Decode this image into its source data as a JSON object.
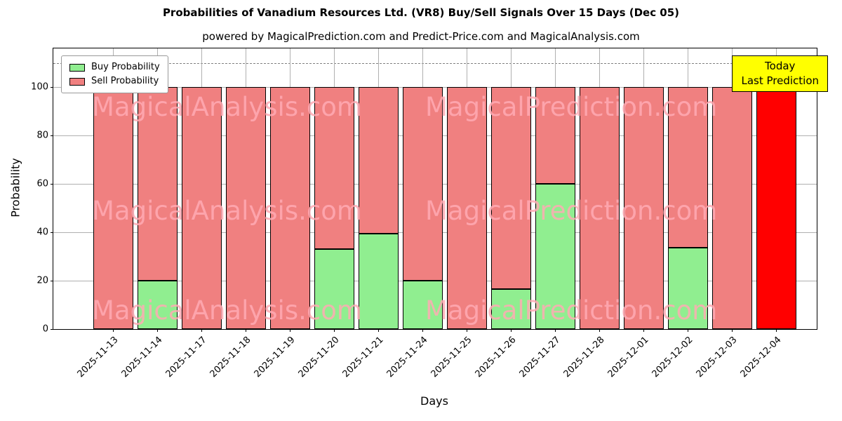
{
  "title": "Probabilities of Vanadium Resources Ltd. (VR8) Buy/Sell Signals Over 15 Days (Dec 05)",
  "subtitle": "powered by MagicalPrediction.com and Predict-Price.com and MagicalAnalysis.com",
  "legend": [
    {
      "label": "Buy Probability",
      "color": "#90ee90"
    },
    {
      "label": "Sell Probability",
      "color": "#f08080"
    }
  ],
  "annotation": {
    "line1": "Today",
    "line2": "Last Prediction",
    "bg_color": "#ffff00"
  },
  "watermarks": {
    "left": "MagicalAnalysis.com",
    "right": "MagicalPrediction.com",
    "color": "rgba(255,170,180,0.85)"
  },
  "chart_data": {
    "type": "bar",
    "stacked": true,
    "title": "Probabilities of Vanadium Resources Ltd. (VR8) Buy/Sell Signals Over 15 Days (Dec 05)",
    "xlabel": "Days",
    "ylabel": "Probability",
    "ylim": [
      0,
      116
    ],
    "yticks": [
      0,
      20,
      40,
      60,
      80,
      100
    ],
    "dashed_line_y": 110,
    "grid": true,
    "legend_position": "upper left",
    "categories": [
      "2025-11-13",
      "2025-11-14",
      "2025-11-17",
      "2025-11-18",
      "2025-11-19",
      "2025-11-20",
      "2025-11-21",
      "2025-11-24",
      "2025-11-25",
      "2025-11-26",
      "2025-11-27",
      "2025-11-28",
      "2025-12-01",
      "2025-12-02",
      "2025-12-03",
      "2025-12-04"
    ],
    "series": [
      {
        "name": "Buy Probability",
        "color": "#90ee90",
        "values": [
          0,
          20,
          0,
          0,
          0,
          33,
          39.5,
          20,
          0,
          16.5,
          60,
          0,
          0,
          33.5,
          0,
          0
        ]
      },
      {
        "name": "Sell Probability",
        "color": "#f08080",
        "values": [
          100,
          80,
          100,
          100,
          100,
          67,
          60.5,
          80,
          100,
          83.5,
          40,
          100,
          100,
          66.5,
          100,
          100
        ]
      }
    ],
    "highlight_last": true,
    "highlight_color": "#ff0000",
    "bar_edge_color": "#000000"
  }
}
